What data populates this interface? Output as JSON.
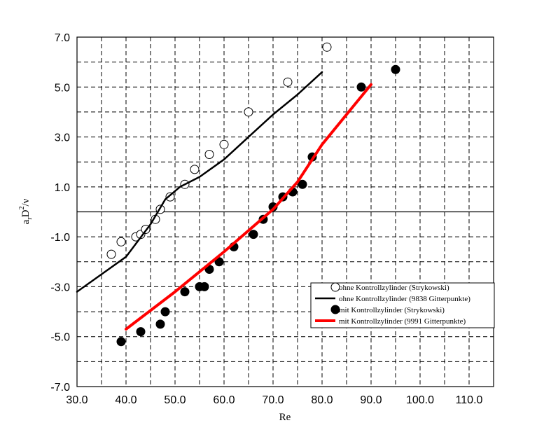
{
  "chart_data": {
    "type": "scatter",
    "xlabel": "Re",
    "ylabel_parts": {
      "a": "a",
      "sub": "r",
      "D": "D",
      "sup": "2",
      "nu": "/ν"
    },
    "xlim": [
      30,
      115
    ],
    "ylim": [
      -7,
      7
    ],
    "x_ticks": [
      30,
      40,
      50,
      60,
      70,
      80,
      90,
      100,
      110
    ],
    "x_tick_labels": [
      "30.0",
      "40.0",
      "50.0",
      "60.0",
      "70.0",
      "80.0",
      "90.0",
      "100.0",
      "110.0"
    ],
    "y_ticks": [
      -7,
      -5,
      -3,
      -1,
      1,
      3,
      5,
      7
    ],
    "y_tick_labels": [
      "-7.0",
      "-5.0",
      "-3.0",
      "-1.0",
      "1.0",
      "3.0",
      "5.0",
      "7.0"
    ],
    "grid": true,
    "grid_step_y": 1,
    "zero_line": true,
    "legend_position": "lower-right",
    "series": [
      {
        "name": "ohne Kontrollzylinder (Strykowski)",
        "style": "open-circle",
        "color": "#000000",
        "points": [
          [
            37,
            -1.7
          ],
          [
            39,
            -1.2
          ],
          [
            42,
            -1.0
          ],
          [
            43,
            -0.9
          ],
          [
            44,
            -0.7
          ],
          [
            46,
            -0.3
          ],
          [
            47,
            0.1
          ],
          [
            49,
            0.6
          ],
          [
            52,
            1.1
          ],
          [
            54,
            1.7
          ],
          [
            57,
            2.3
          ],
          [
            60,
            2.7
          ],
          [
            65,
            4.0
          ],
          [
            73,
            5.2
          ],
          [
            81,
            6.6
          ]
        ]
      },
      {
        "name": "ohne Kontrollzylinder (9838 Gitterpunkte)",
        "style": "line",
        "color": "#000000",
        "line_width": 2.5,
        "points": [
          [
            30,
            -3.2
          ],
          [
            40,
            -1.8
          ],
          [
            45,
            -0.5
          ],
          [
            48,
            0.5
          ],
          [
            51,
            1.0
          ],
          [
            55,
            1.4
          ],
          [
            60,
            2.1
          ],
          [
            65,
            3.0
          ],
          [
            70,
            3.9
          ],
          [
            75,
            4.7
          ],
          [
            80,
            5.6
          ]
        ]
      },
      {
        "name": "mit Kontrollzylinder (Strykowski)",
        "style": "filled-circle",
        "color": "#000000",
        "points": [
          [
            39,
            -5.2
          ],
          [
            43,
            -4.8
          ],
          [
            47,
            -4.5
          ],
          [
            48,
            -4.0
          ],
          [
            52,
            -3.2
          ],
          [
            55,
            -3.0
          ],
          [
            56,
            -3.0
          ],
          [
            57,
            -2.3
          ],
          [
            59,
            -2.0
          ],
          [
            62,
            -1.4
          ],
          [
            66,
            -0.9
          ],
          [
            68,
            -0.3
          ],
          [
            70,
            0.2
          ],
          [
            72,
            0.6
          ],
          [
            74,
            0.8
          ],
          [
            76,
            1.1
          ],
          [
            78,
            2.2
          ],
          [
            88,
            5.0
          ],
          [
            95,
            5.7
          ]
        ]
      },
      {
        "name": "mit Kontrollzylinder (9991 Gitterpunkte)",
        "style": "line",
        "color": "#ff0000",
        "line_width": 4,
        "points": [
          [
            40,
            -4.7
          ],
          [
            50,
            -3.2
          ],
          [
            60,
            -1.6
          ],
          [
            70,
            0.1
          ],
          [
            75,
            1.2
          ],
          [
            80,
            2.7
          ],
          [
            90,
            5.1
          ]
        ]
      }
    ]
  }
}
